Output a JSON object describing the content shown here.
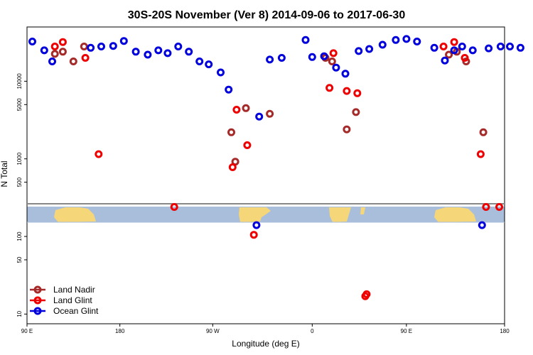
{
  "chart_data": {
    "type": "scatter",
    "title": "30S-20S November (Ver 8)   2014-09-06 to 2017-06-30",
    "xlabel": "Longitude (deg E)",
    "ylabel": "N Total",
    "x_range": [
      90,
      450
    ],
    "y_scale": "log",
    "y_range": [
      7.5,
      50000
    ],
    "x_ticks": [
      {
        "value": 90,
        "label": "90 E"
      },
      {
        "value": 160,
        "label": "180"
      },
      {
        "value": 230,
        "label": "90 W"
      },
      {
        "value": 305,
        "label": "0"
      },
      {
        "value": 376,
        "label": "90 E"
      },
      {
        "value": 450,
        "label": "180"
      }
    ],
    "y_ticks": [
      {
        "value": 10,
        "label": "10"
      },
      {
        "value": 50,
        "label": "50"
      },
      {
        "value": 100,
        "label": "100"
      },
      {
        "value": 500,
        "label": "500"
      },
      {
        "value": 1000,
        "label": "1000"
      },
      {
        "value": 5000,
        "label": "5000"
      },
      {
        "value": 10000,
        "label": "10000"
      }
    ],
    "legend": {
      "position": "bottom-left"
    },
    "colors": {
      "land_nadir": "#a52a2a",
      "land_glint": "#ee0000",
      "ocean_glint": "#0000dd",
      "ocean_band": "#a8bedb",
      "land_band": "#f5d77a"
    },
    "series": [
      {
        "name": "Land Nadir",
        "color": "#a52a2a",
        "x": [
          111,
          117,
          125,
          133,
          244,
          247,
          255,
          273,
          315,
          320,
          331,
          338,
          408,
          414,
          421,
          434
        ],
        "y": [
          22500,
          24000,
          18000,
          28000,
          2200,
          920,
          4500,
          3800,
          20000,
          18000,
          2400,
          4000,
          22000,
          24000,
          18000,
          2200
        ]
      },
      {
        "name": "Land Glint",
        "color": "#ee0000",
        "x": [
          111,
          117,
          134,
          144,
          201,
          245,
          248,
          256,
          261,
          318,
          321,
          331,
          339,
          345,
          346,
          404,
          412,
          420,
          432,
          436,
          446
        ],
        "y": [
          28000,
          32000,
          20000,
          1150,
          240,
          780,
          4300,
          1500,
          105,
          8200,
          23000,
          7500,
          7000,
          17,
          18,
          28000,
          32000,
          20000,
          1150,
          240,
          240
        ]
      },
      {
        "name": "Ocean Glint",
        "color": "#0000dd",
        "x": [
          94,
          103,
          109,
          138,
          146,
          155,
          163,
          172,
          181,
          189,
          196,
          204,
          212,
          220,
          227,
          236,
          242,
          263,
          265,
          273,
          282,
          300,
          305,
          314,
          323,
          330,
          340,
          348,
          358,
          368,
          376,
          384,
          397,
          405,
          412,
          418,
          426,
          433,
          438,
          447,
          454,
          462
        ],
        "y": [
          32500,
          25000,
          18000,
          27000,
          28000,
          28500,
          33000,
          24000,
          22000,
          25000,
          23000,
          28000,
          24000,
          18000,
          16500,
          13000,
          7800,
          140,
          3500,
          19000,
          20000,
          34000,
          20500,
          21000,
          15000,
          12500,
          24500,
          26000,
          29500,
          34000,
          35000,
          32500,
          27000,
          18500,
          25000,
          28000,
          25000,
          140,
          26500,
          28000,
          28000,
          27000
        ]
      }
    ]
  }
}
